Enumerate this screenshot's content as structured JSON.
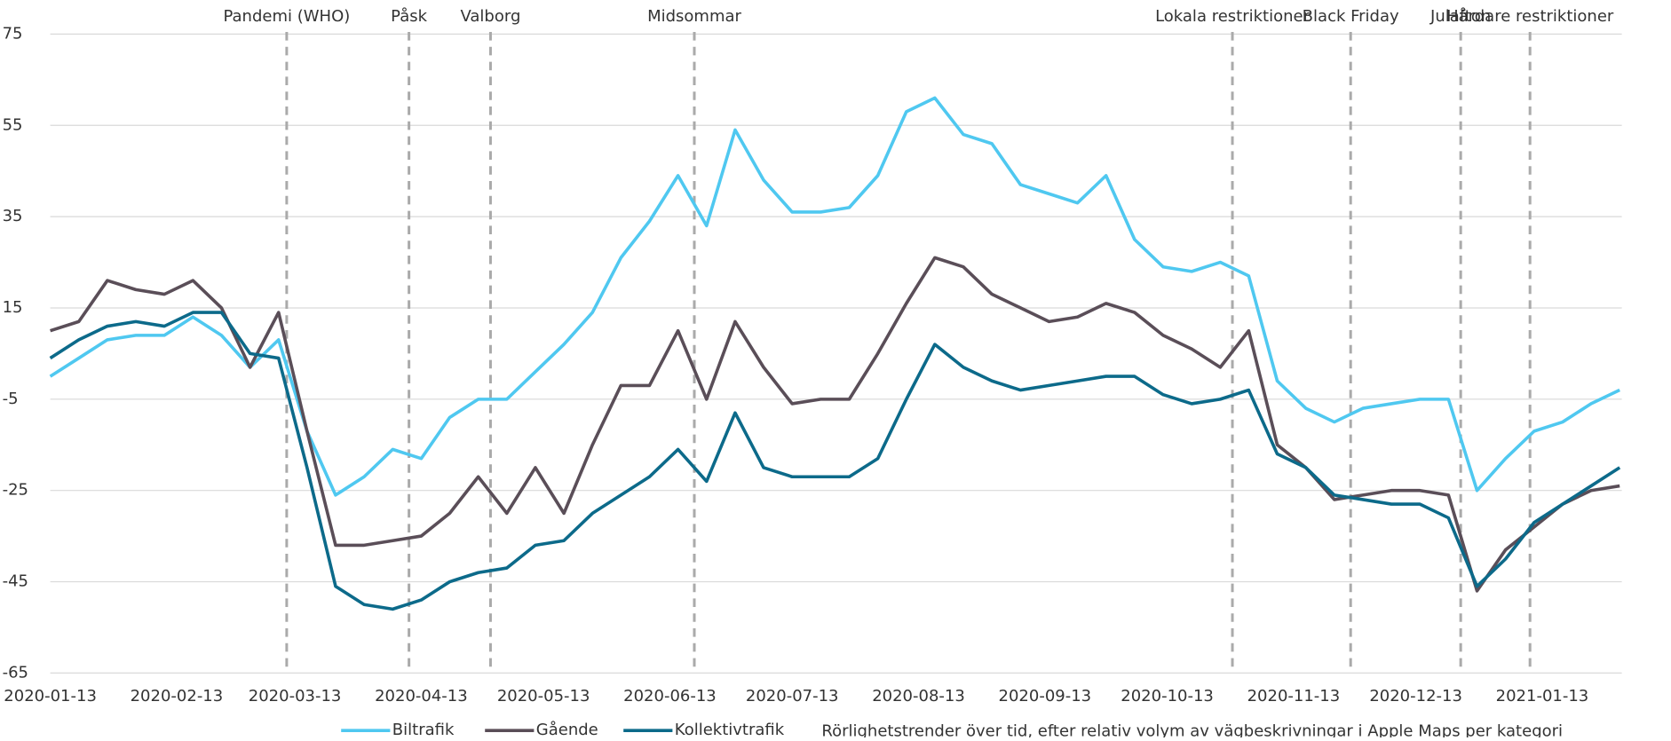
{
  "chart_data": {
    "type": "line",
    "x": [
      "2020-01-13",
      "2020-01-20",
      "2020-01-27",
      "2020-02-03",
      "2020-02-10",
      "2020-02-17",
      "2020-02-24",
      "2020-03-02",
      "2020-03-09",
      "2020-03-16",
      "2020-03-23",
      "2020-03-30",
      "2020-04-06",
      "2020-04-13",
      "2020-04-20",
      "2020-04-27",
      "2020-05-04",
      "2020-05-11",
      "2020-05-18",
      "2020-05-25",
      "2020-06-01",
      "2020-06-08",
      "2020-06-15",
      "2020-06-22",
      "2020-06-29",
      "2020-07-06",
      "2020-07-13",
      "2020-07-20",
      "2020-07-27",
      "2020-08-03",
      "2020-08-10",
      "2020-08-17",
      "2020-08-24",
      "2020-08-31",
      "2020-09-07",
      "2020-09-14",
      "2020-09-21",
      "2020-09-28",
      "2020-10-05",
      "2020-10-12",
      "2020-10-19",
      "2020-10-26",
      "2020-11-02",
      "2020-11-09",
      "2020-11-16",
      "2020-11-23",
      "2020-11-30",
      "2020-12-07",
      "2020-12-14",
      "2020-12-21",
      "2020-12-28",
      "2021-01-04",
      "2021-01-11",
      "2021-01-18",
      "2021-01-25",
      "2021-02-01"
    ],
    "series": [
      {
        "name": "Biltrafik",
        "color": "#4fc8f0",
        "values": [
          0,
          4,
          8,
          9,
          9,
          13,
          9,
          2,
          8,
          -12,
          -26,
          -22,
          -16,
          -18,
          -9,
          -5,
          -5,
          1,
          7,
          14,
          26,
          34,
          44,
          33,
          54,
          43,
          36,
          36,
          37,
          44,
          58,
          61,
          53,
          51,
          42,
          40,
          38,
          44,
          30,
          24,
          23,
          25,
          22,
          -1,
          -7,
          -10,
          -7,
          -6,
          -5,
          -5,
          -25,
          -18,
          -12,
          -10,
          -6,
          -3
        ]
      },
      {
        "name": "Gående",
        "color": "#5a4e58",
        "values": [
          10,
          12,
          21,
          19,
          18,
          21,
          15,
          2,
          14,
          -12,
          -37,
          -37,
          -36,
          -35,
          -30,
          -22,
          -30,
          -20,
          -30,
          -15,
          -2,
          -2,
          10,
          -5,
          12,
          2,
          -6,
          -5,
          -5,
          5,
          16,
          26,
          24,
          18,
          15,
          12,
          13,
          16,
          14,
          9,
          6,
          2,
          10,
          -15,
          -20,
          -27,
          -26,
          -25,
          -25,
          -26,
          -47,
          -38,
          -33,
          -28,
          -25,
          -24
        ]
      },
      {
        "name": "Kollektivtrafik",
        "color": "#0c6a8a",
        "values": [
          4,
          8,
          11,
          12,
          11,
          14,
          14,
          5,
          4,
          -20,
          -46,
          -50,
          -51,
          -49,
          -45,
          -43,
          -42,
          -37,
          -36,
          -30,
          -26,
          -22,
          -16,
          -23,
          -8,
          -20,
          -22,
          -22,
          -22,
          -18,
          -5,
          7,
          2,
          -1,
          -3,
          -2,
          -1,
          0,
          0,
          -4,
          -6,
          -5,
          -3,
          -17,
          -20,
          -26,
          -27,
          -28,
          -28,
          -31,
          -46,
          -40,
          -32,
          -28,
          -24,
          -20
        ]
      }
    ],
    "xlim": [
      "2020-01-13",
      "2021-02-01"
    ],
    "xticks": [
      "2020-01-13",
      "2020-02-13",
      "2020-03-13",
      "2020-04-13",
      "2020-05-13",
      "2020-06-13",
      "2020-07-13",
      "2020-08-13",
      "2020-09-13",
      "2020-10-13",
      "2020-11-13",
      "2020-12-13",
      "2021-01-13"
    ],
    "ylim": [
      -65,
      75
    ],
    "yticks": [
      75,
      55,
      35,
      15,
      -5,
      -25,
      -45,
      -65
    ],
    "grid": true,
    "annotations": [
      {
        "label": "Pandemi (WHO)",
        "x": "2020-03-11"
      },
      {
        "label": "Påsk",
        "x": "2020-04-10"
      },
      {
        "label": "Valborg",
        "x": "2020-04-30"
      },
      {
        "label": "Midsommar",
        "x": "2020-06-19"
      },
      {
        "label": "Lokala restriktioner",
        "x": "2020-10-29"
      },
      {
        "label": "Black Friday",
        "x": "2020-11-27"
      },
      {
        "label": "Julafton",
        "x": "2020-12-24"
      },
      {
        "label": "Hårdare restriktioner",
        "x": "2021-01-10"
      }
    ],
    "caption": "Rörlighetstrender över tid, efter relativ volym av vägbeskrivningar i Apple Maps per kategori"
  }
}
